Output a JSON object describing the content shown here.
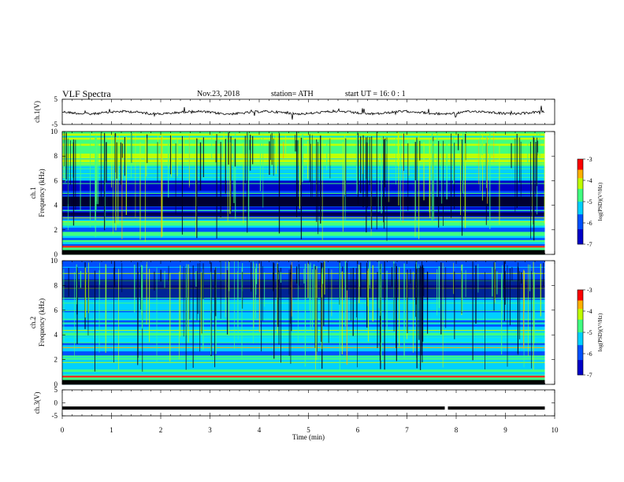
{
  "header": {
    "title": "VLF  Spectra",
    "date": "Nov.23, 2018",
    "station": "station= ATH",
    "start": "start  UT  =   16: 0  : 1"
  },
  "chart_data": [
    {
      "type": "line",
      "ylabel": "ch.1(V)",
      "ylim": [
        -5,
        5
      ],
      "yticks": [
        "5",
        "-5"
      ],
      "xlim": [
        0,
        10
      ],
      "series": [
        {
          "values_description_level": 0.1
        }
      ]
    },
    {
      "type": "heatmap",
      "ylabel": "ch.1\nFrequency  (kHz)",
      "ylim": [
        0,
        10
      ],
      "yticks": [
        "0",
        "2",
        "4",
        "6",
        "8",
        "10"
      ],
      "xlim": [
        0,
        10
      ],
      "colorbar": {
        "label": "log(PSD)(V²/Hz)",
        "ticks": [
          "-3",
          "-4",
          "-5",
          "-6",
          "-7"
        ],
        "range": [
          -7,
          -3
        ]
      }
    },
    {
      "type": "heatmap",
      "ylabel": "ch.2\nFrequency  (kHz)",
      "ylim": [
        0,
        10
      ],
      "yticks": [
        "0",
        "2",
        "4",
        "6",
        "8",
        "10"
      ],
      "xlim": [
        0,
        10
      ],
      "colorbar": {
        "label": "log(PSD)(V²/Hz)",
        "ticks": [
          "-3",
          "-4",
          "-5",
          "-6",
          "-7"
        ],
        "range": [
          -7,
          -3
        ]
      }
    },
    {
      "type": "line",
      "ylabel": "ch.3(V)",
      "ylim": [
        -5,
        5
      ],
      "yticks": [
        "5",
        "0",
        "-5"
      ],
      "xlim": [
        0,
        10
      ],
      "xlabel": "Time  (min)",
      "xticks": [
        "0",
        "1",
        "2",
        "3",
        "4",
        "5",
        "6",
        "7",
        "8",
        "9",
        "10"
      ],
      "series": [
        {
          "level": -2,
          "gap_at": 7.8
        }
      ]
    }
  ],
  "colors": {
    "low": "#000040",
    "mid": "#0000ff",
    "cyan": "#00d0ff",
    "green": "#40ff40",
    "yellow": "#ffff00",
    "red": "#ff0000"
  }
}
